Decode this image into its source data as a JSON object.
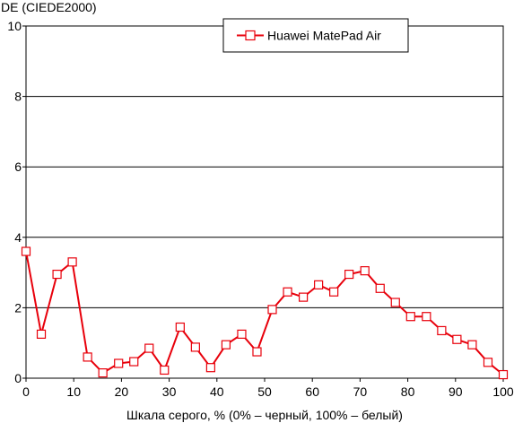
{
  "chart_data": {
    "type": "line",
    "title": "",
    "ylabel": "DE (CIEDE2000)",
    "xlabel": "Шкала серого, % (0% – черный, 100% – белый)",
    "xlim": [
      0,
      100
    ],
    "ylim": [
      0,
      10
    ],
    "x_ticks": [
      "0",
      "10",
      "20",
      "30",
      "40",
      "50",
      "60",
      "70",
      "80",
      "90",
      "100"
    ],
    "y_ticks": [
      "0",
      "2",
      "4",
      "6",
      "8",
      "10"
    ],
    "grid": "horizontal",
    "legend_position": "top-right",
    "series": [
      {
        "name": "Huawei MatePad Air",
        "color": "#e8000b",
        "marker": "open-square",
        "x": [
          0,
          3.2,
          6.5,
          9.7,
          12.9,
          16.1,
          19.4,
          22.6,
          25.8,
          29.0,
          32.3,
          35.5,
          38.7,
          41.9,
          45.2,
          48.4,
          51.6,
          54.8,
          58.1,
          61.3,
          64.5,
          67.7,
          71.0,
          74.2,
          77.4,
          80.6,
          83.9,
          87.1,
          90.3,
          93.5,
          96.8,
          100
        ],
        "y": [
          3.6,
          1.25,
          2.95,
          3.3,
          0.6,
          0.15,
          0.42,
          0.47,
          0.85,
          0.23,
          1.45,
          0.88,
          0.3,
          0.95,
          1.25,
          0.75,
          1.95,
          2.45,
          2.3,
          2.65,
          2.45,
          2.95,
          3.05,
          2.55,
          2.15,
          1.75,
          1.75,
          1.35,
          1.1,
          0.95,
          0.45,
          0.1
        ]
      }
    ]
  }
}
